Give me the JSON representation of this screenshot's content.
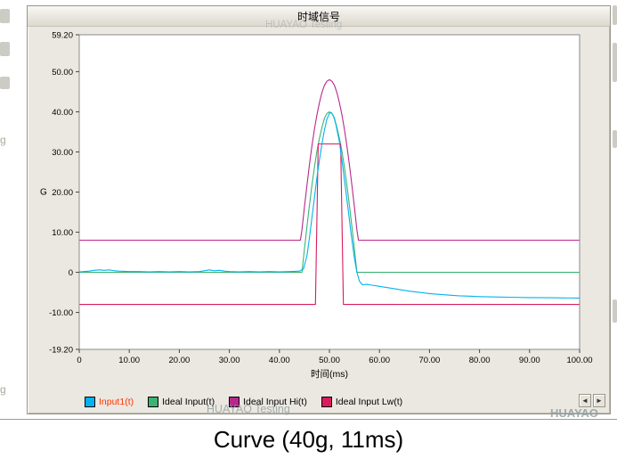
{
  "window": {
    "title": "时域信号",
    "scroll_left": "◄",
    "scroll_right": "►"
  },
  "legend": [
    {
      "name": "input1",
      "label": "Input1(t)",
      "color": "#00b3ef",
      "label_color": "#ff3300"
    },
    {
      "name": "ideal-input",
      "label": "Ideal Input(t)",
      "color": "#3cb371",
      "label_color": "#000000"
    },
    {
      "name": "ideal-input-hi",
      "label": "Ideal Input Hi(t)",
      "color": "#b8288c",
      "label_color": "#000000"
    },
    {
      "name": "ideal-input-lw",
      "label": "Ideal Input Lw(t)",
      "color": "#d81b60",
      "label_color": "#000000"
    }
  ],
  "watermarks": {
    "top": "HUAYAO Testing",
    "bottom_left": "HUAYAO Testing",
    "bottom_right": "HUAYAO"
  },
  "edge_text": {
    "g1": "g",
    "g2": "g"
  },
  "caption": "Curve (40g, 11ms)",
  "chart_data": {
    "type": "line",
    "title": "时域信号",
    "xlabel": "时间(ms)",
    "ylabel": "G",
    "xlim": [
      0,
      100
    ],
    "ylim": [
      -19.2,
      59.2
    ],
    "grid": false,
    "legend_position": "bottom",
    "xticks": {
      "values": [
        0,
        10,
        20,
        30,
        40,
        50,
        60,
        70,
        80,
        90,
        100
      ],
      "labels": [
        "0",
        "10.00",
        "20.00",
        "30.00",
        "40.00",
        "50.00",
        "60.00",
        "70.00",
        "80.00",
        "90.00",
        "100.00"
      ]
    },
    "yticks": {
      "values": [
        59.2,
        50,
        40,
        30,
        20,
        10,
        0,
        -10,
        -19.2
      ],
      "labels": [
        "59.20",
        "50.00",
        "40.00",
        "30.00",
        "20.00",
        "10.00",
        "0",
        "-10.00",
        "-19.20"
      ]
    },
    "draw_order": [
      1,
      2,
      3,
      0
    ],
    "series": [
      {
        "name": "Input1(t)",
        "color": "#00b3ef",
        "points": [
          [
            0,
            0.1
          ],
          [
            2,
            0.3
          ],
          [
            3,
            0.5
          ],
          [
            4,
            0.6
          ],
          [
            5,
            0.5
          ],
          [
            6,
            0.6
          ],
          [
            7,
            0.4
          ],
          [
            8,
            0.3
          ],
          [
            10,
            0.2
          ],
          [
            12,
            0.2
          ],
          [
            14,
            0.1
          ],
          [
            16,
            0.2
          ],
          [
            18,
            0.1
          ],
          [
            20,
            0.2
          ],
          [
            22,
            0.1
          ],
          [
            24,
            0.2
          ],
          [
            25,
            0.4
          ],
          [
            26,
            0.6
          ],
          [
            27,
            0.4
          ],
          [
            28,
            0.5
          ],
          [
            29,
            0.3
          ],
          [
            30,
            0.2
          ],
          [
            32,
            0.1
          ],
          [
            34,
            0.2
          ],
          [
            36,
            0.1
          ],
          [
            38,
            0.2
          ],
          [
            40,
            0.1
          ],
          [
            42,
            0.2
          ],
          [
            44,
            0.3
          ],
          [
            44.8,
            0.8
          ],
          [
            45.5,
            4
          ],
          [
            46,
            8.5
          ],
          [
            46.5,
            13.5
          ],
          [
            47,
            18.5
          ],
          [
            47.5,
            23.5
          ],
          [
            48,
            28
          ],
          [
            48.5,
            32
          ],
          [
            49,
            35.5
          ],
          [
            49.5,
            38.2
          ],
          [
            50,
            39.6
          ],
          [
            50.4,
            39.8
          ],
          [
            50.8,
            39
          ],
          [
            51.3,
            36.8
          ],
          [
            52,
            32.5
          ],
          [
            52.6,
            27
          ],
          [
            53.2,
            21
          ],
          [
            53.8,
            15
          ],
          [
            54.4,
            9
          ],
          [
            55,
            3.5
          ],
          [
            55.5,
            0
          ],
          [
            56,
            -2.2
          ],
          [
            56.6,
            -3.1
          ],
          [
            57.5,
            -3
          ],
          [
            58.5,
            -3.2
          ],
          [
            60,
            -3.5
          ],
          [
            62,
            -3.9
          ],
          [
            64,
            -4.3
          ],
          [
            66,
            -4.7
          ],
          [
            68,
            -5
          ],
          [
            70,
            -5.3
          ],
          [
            72,
            -5.5
          ],
          [
            74,
            -5.7
          ],
          [
            76,
            -5.85
          ],
          [
            78,
            -5.95
          ],
          [
            80,
            -6.05
          ],
          [
            83,
            -6.15
          ],
          [
            86,
            -6.2
          ],
          [
            90,
            -6.3
          ],
          [
            94,
            -6.35
          ],
          [
            100,
            -6.4
          ]
        ]
      },
      {
        "name": "Ideal Input(t)",
        "color": "#3cb371",
        "points": [
          [
            0,
            0
          ],
          [
            44.5,
            0
          ],
          [
            45,
            5.7
          ],
          [
            45.5,
            11.3
          ],
          [
            46,
            16.6
          ],
          [
            46.5,
            21.6
          ],
          [
            47,
            26.1
          ],
          [
            47.5,
            30.1
          ],
          [
            48,
            33.4
          ],
          [
            48.5,
            36.1
          ],
          [
            49,
            38.4
          ],
          [
            49.5,
            39.6
          ],
          [
            50,
            40
          ],
          [
            50.5,
            39.6
          ],
          [
            51,
            38.4
          ],
          [
            51.5,
            36.1
          ],
          [
            52,
            33.4
          ],
          [
            52.5,
            30.1
          ],
          [
            53,
            26.1
          ],
          [
            53.5,
            21.6
          ],
          [
            54,
            16.6
          ],
          [
            54.5,
            11.3
          ],
          [
            55,
            5.7
          ],
          [
            55.5,
            0
          ],
          [
            100,
            0
          ]
        ]
      },
      {
        "name": "Ideal Input Hi(t)",
        "color": "#b8288c",
        "points": [
          [
            0,
            8
          ],
          [
            44.2,
            8
          ],
          [
            44.5,
            10.5
          ],
          [
            45,
            16.2
          ],
          [
            45.5,
            21.6
          ],
          [
            46,
            26.7
          ],
          [
            46.5,
            31.4
          ],
          [
            47,
            35.6
          ],
          [
            47.5,
            39.2
          ],
          [
            48,
            42.3
          ],
          [
            48.5,
            44.8
          ],
          [
            49,
            46.6
          ],
          [
            49.5,
            47.6
          ],
          [
            50,
            48
          ],
          [
            50.5,
            47.6
          ],
          [
            51,
            46.6
          ],
          [
            51.5,
            44.8
          ],
          [
            52,
            42.3
          ],
          [
            52.5,
            39.2
          ],
          [
            53,
            35.6
          ],
          [
            53.5,
            31.4
          ],
          [
            54,
            26.7
          ],
          [
            54.5,
            21.6
          ],
          [
            55,
            16.2
          ],
          [
            55.5,
            10.5
          ],
          [
            55.8,
            8
          ],
          [
            100,
            8
          ]
        ]
      },
      {
        "name": "Ideal Input Lw(t)",
        "color": "#d81b60",
        "points": [
          [
            0,
            -8
          ],
          [
            47.2,
            -8
          ],
          [
            47.75,
            32
          ],
          [
            52.25,
            32
          ],
          [
            52.8,
            -8
          ],
          [
            100,
            -8
          ]
        ]
      }
    ]
  }
}
